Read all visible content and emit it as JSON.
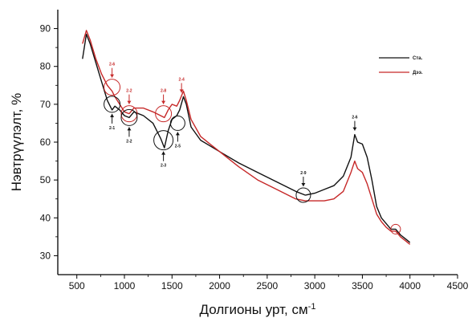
{
  "chart_data": {
    "type": "line",
    "xlabel": "Долгионы урт, см",
    "xlabel_sup": "-1",
    "ylabel": "Нэвтрүүлэлт, %",
    "xlim": [
      300,
      4500
    ],
    "ylim": [
      25,
      95
    ],
    "xticks": [
      500,
      1000,
      1500,
      2000,
      2500,
      3000,
      3500,
      4000,
      4500
    ],
    "yticks": [
      30,
      40,
      50,
      60,
      70,
      80,
      90
    ],
    "legend_position": "top-right",
    "grid": false,
    "series": [
      {
        "name": "Ста.",
        "color": "#111111",
        "points": [
          [
            560,
            82
          ],
          [
            600,
            88.5
          ],
          [
            640,
            86
          ],
          [
            700,
            81
          ],
          [
            760,
            76
          ],
          [
            820,
            71
          ],
          [
            870,
            68.5
          ],
          [
            900,
            69.5
          ],
          [
            950,
            68.5
          ],
          [
            1000,
            67
          ],
          [
            1050,
            66.5
          ],
          [
            1100,
            68
          ],
          [
            1200,
            67
          ],
          [
            1300,
            65
          ],
          [
            1380,
            61
          ],
          [
            1420,
            58.5
          ],
          [
            1460,
            63
          ],
          [
            1500,
            66
          ],
          [
            1550,
            67
          ],
          [
            1580,
            68.5
          ],
          [
            1620,
            72
          ],
          [
            1650,
            70
          ],
          [
            1700,
            64
          ],
          [
            1800,
            60.5
          ],
          [
            1900,
            59
          ],
          [
            2000,
            57.5
          ],
          [
            2200,
            54.5
          ],
          [
            2400,
            52
          ],
          [
            2600,
            49.5
          ],
          [
            2800,
            47
          ],
          [
            2900,
            46
          ],
          [
            3000,
            46.5
          ],
          [
            3100,
            47.5
          ],
          [
            3200,
            48.5
          ],
          [
            3300,
            51
          ],
          [
            3380,
            56
          ],
          [
            3420,
            62
          ],
          [
            3450,
            60
          ],
          [
            3500,
            59.5
          ],
          [
            3550,
            56
          ],
          [
            3600,
            50
          ],
          [
            3650,
            43
          ],
          [
            3700,
            40
          ],
          [
            3750,
            38.5
          ],
          [
            3800,
            37
          ],
          [
            3850,
            37
          ],
          [
            3900,
            35.5
          ],
          [
            3950,
            34.5
          ],
          [
            4000,
            33.5
          ]
        ]
      },
      {
        "name": "Дээ.",
        "color": "#c62828",
        "points": [
          [
            560,
            86
          ],
          [
            600,
            89.5
          ],
          [
            640,
            87
          ],
          [
            700,
            82
          ],
          [
            760,
            78
          ],
          [
            820,
            75
          ],
          [
            870,
            73.5
          ],
          [
            900,
            72
          ],
          [
            950,
            70
          ],
          [
            1000,
            68
          ],
          [
            1050,
            67.5
          ],
          [
            1100,
            69
          ],
          [
            1200,
            69
          ],
          [
            1300,
            68
          ],
          [
            1380,
            67
          ],
          [
            1420,
            66.5
          ],
          [
            1460,
            68.5
          ],
          [
            1500,
            70
          ],
          [
            1550,
            69.5
          ],
          [
            1580,
            71
          ],
          [
            1620,
            73.5
          ],
          [
            1650,
            71
          ],
          [
            1700,
            66
          ],
          [
            1800,
            61.5
          ],
          [
            1900,
            59.5
          ],
          [
            2000,
            57.5
          ],
          [
            2200,
            53.5
          ],
          [
            2400,
            50
          ],
          [
            2600,
            47.5
          ],
          [
            2800,
            45
          ],
          [
            2900,
            44.5
          ],
          [
            3000,
            44.5
          ],
          [
            3100,
            44.5
          ],
          [
            3200,
            45
          ],
          [
            3300,
            47
          ],
          [
            3380,
            52
          ],
          [
            3420,
            55
          ],
          [
            3450,
            53
          ],
          [
            3500,
            52
          ],
          [
            3550,
            49
          ],
          [
            3600,
            45
          ],
          [
            3650,
            41
          ],
          [
            3700,
            39
          ],
          [
            3750,
            37.5
          ],
          [
            3800,
            36.5
          ],
          [
            3850,
            36.5
          ],
          [
            3900,
            35
          ],
          [
            3950,
            34
          ],
          [
            4000,
            33
          ]
        ]
      }
    ],
    "annotations": [
      {
        "label": "2-6",
        "x": 870,
        "y": 74.5,
        "r": 10,
        "color": "#c62828",
        "label_pos": "above"
      },
      {
        "label": "2-1",
        "x": 870,
        "y": 70,
        "r": 10,
        "color": "#111111",
        "label_pos": "below"
      },
      {
        "label": "2-2",
        "x": 1050,
        "y": 67.5,
        "r": 10,
        "color": "#c62828",
        "label_pos": "above"
      },
      {
        "label": "2-2",
        "x": 1050,
        "y": 66.5,
        "r": 10,
        "color": "#111111",
        "label_pos": "below"
      },
      {
        "label": "2-8",
        "x": 1410,
        "y": 67.5,
        "r": 10,
        "color": "#c62828",
        "label_pos": "above"
      },
      {
        "label": "2-3",
        "x": 1410,
        "y": 60.5,
        "r": 12,
        "color": "#111111",
        "label_pos": "below"
      },
      {
        "label": "2-4",
        "x": 1600,
        "y": 72,
        "r": 0,
        "color": "#c62828",
        "label_pos": "above"
      },
      {
        "label": "2-5",
        "x": 1560,
        "y": 65,
        "r": 9,
        "color": "#111111",
        "label_pos": "below"
      },
      {
        "label": "2-9",
        "x": 2880,
        "y": 46,
        "r": 9,
        "color": "#111111",
        "label_pos": "above"
      },
      {
        "label": "2-6",
        "x": 3420,
        "y": 62,
        "r": 0,
        "color": "#111111",
        "label_pos": "above"
      },
      {
        "label": "",
        "x": 3850,
        "y": 37,
        "r": 6,
        "color": "#c62828",
        "label_pos": "none"
      }
    ]
  }
}
